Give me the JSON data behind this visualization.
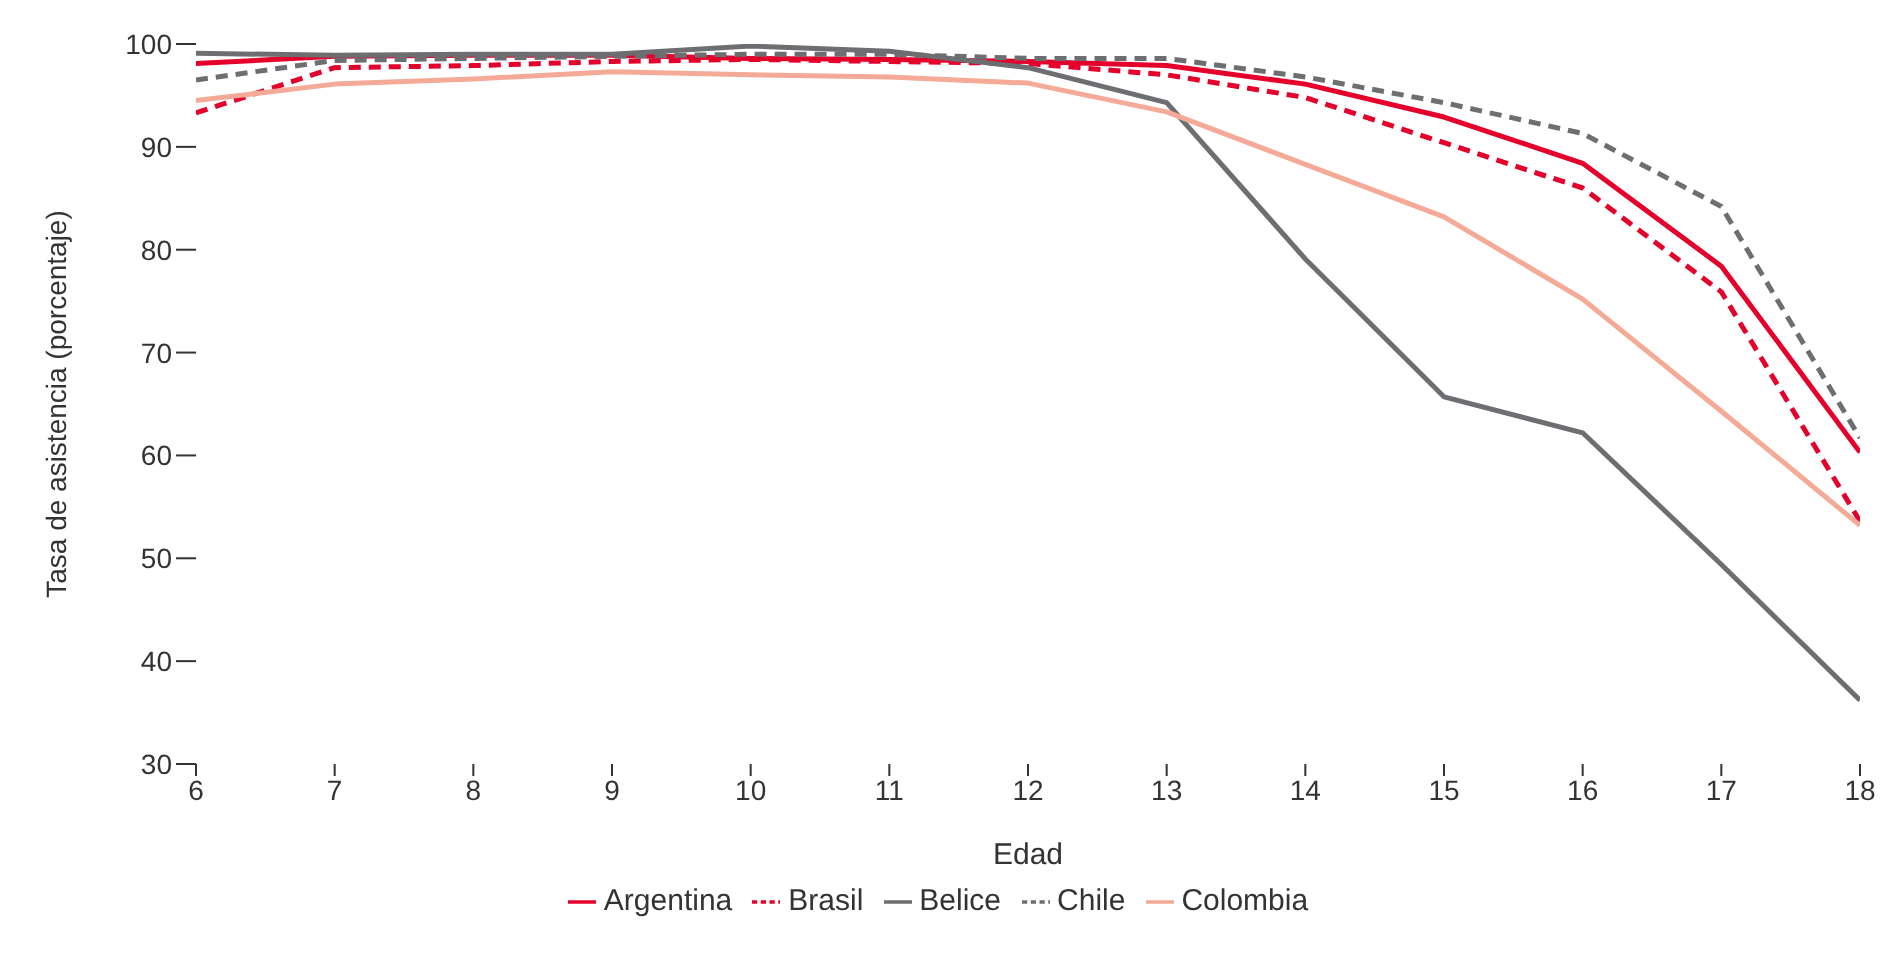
{
  "chart_data": {
    "type": "line",
    "xlabel": "Edad",
    "ylabel": "Tasa de asistencia (porcentaje)",
    "x": [
      6,
      7,
      8,
      9,
      10,
      11,
      12,
      13,
      14,
      15,
      16,
      17,
      18
    ],
    "xlim": [
      6,
      18
    ],
    "xticks": [
      6,
      7,
      8,
      9,
      10,
      11,
      12,
      13,
      14,
      15,
      16,
      17,
      18
    ],
    "ylim": [
      30,
      100
    ],
    "yticks": [
      30,
      40,
      50,
      60,
      70,
      80,
      90,
      100
    ],
    "grid": false,
    "legend": "bottom",
    "marker": "none",
    "series": [
      {
        "name": "Argentina",
        "color": "#e4002b",
        "line_style": "solid",
        "values": [
          98.1,
          98.8,
          98.9,
          98.9,
          98.6,
          98.5,
          98.3,
          97.9,
          96.1,
          92.9,
          88.4,
          78.4,
          60.3
        ]
      },
      {
        "name": "Brasil",
        "color": "#e4002b",
        "line_style": "dashed",
        "values": [
          93.3,
          97.7,
          97.9,
          98.3,
          98.5,
          98.3,
          98.1,
          97,
          94.8,
          90.4,
          86,
          75.9,
          53.6
        ]
      },
      {
        "name": "Belice",
        "color": "#6d6e71",
        "line_style": "solid",
        "values": [
          99.1,
          98.9,
          99,
          99,
          99.8,
          99.3,
          97.7,
          94.3,
          79.1,
          65.7,
          62.2,
          49.4,
          36.2
        ]
      },
      {
        "name": "Chile",
        "color": "#6d6e71",
        "line_style": "dashed",
        "values": [
          96.5,
          98.4,
          98.6,
          98.8,
          99,
          99,
          98.6,
          98.6,
          96.8,
          94.3,
          91.3,
          84.2,
          61.7
        ]
      },
      {
        "name": "Colombia",
        "color": "#f4aa96",
        "line_style": "solid",
        "values": [
          94.5,
          96.1,
          96.6,
          97.3,
          97,
          96.8,
          96.2,
          93.4,
          88.3,
          83.2,
          75.2,
          64.3,
          53.2
        ]
      }
    ]
  }
}
